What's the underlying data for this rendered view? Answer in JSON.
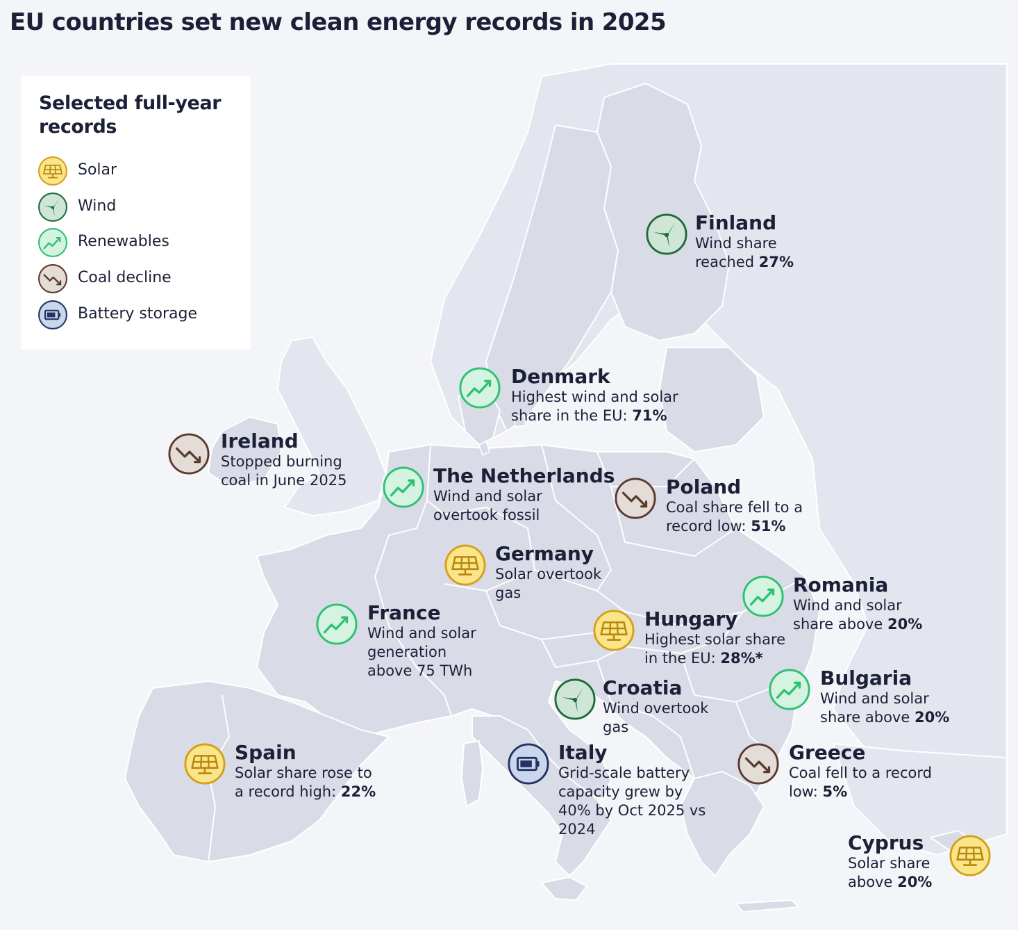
{
  "title": "EU countries set new clean energy records in 2025",
  "colors": {
    "background": "#f4f5f9",
    "land": "#d9dbe7",
    "land_light": "#e4e6ef",
    "border": "#ffffff",
    "solar_fill": "#fbe58a",
    "solar_stroke": "#d4a017",
    "wind_fill": "#cfe6d6",
    "wind_stroke": "#1f6b3a",
    "renewables_fill": "#d5f3e1",
    "renewables_stroke": "#2bc172",
    "coal_fill": "#e4dcd7",
    "coal_stroke": "#5a3a2e",
    "battery_fill": "#c9d6ee",
    "battery_stroke": "#22345f"
  },
  "legend": {
    "title": "Selected full-year records",
    "items": [
      {
        "icon": "solar-icon",
        "label": "Solar"
      },
      {
        "icon": "wind-icon",
        "label": "Wind"
      },
      {
        "icon": "renewables-icon",
        "label": "Renewables"
      },
      {
        "icon": "coal-decline-icon",
        "label": "Coal decline"
      },
      {
        "icon": "battery-icon",
        "label": "Battery storage"
      }
    ]
  },
  "callouts": {
    "finland": {
      "country": "Finland",
      "line1": "Wind share",
      "line2_text": "reached ",
      "line2_bold": "27%",
      "category": "wind"
    },
    "denmark": {
      "country": "Denmark",
      "line1": "Highest wind and solar",
      "line2_text": "share in the EU: ",
      "line2_bold": "71%",
      "category": "renewables"
    },
    "ireland": {
      "country": "Ireland",
      "line1": "Stopped burning",
      "line2_text": "coal in June 2025",
      "category": "coal"
    },
    "netherlands": {
      "country": "The Netherlands",
      "line1": "Wind and solar",
      "line2_text": "overtook fossil",
      "category": "renewables"
    },
    "poland": {
      "country": "Poland",
      "line1": "Coal share fell to a",
      "line2_text": "record low: ",
      "line2_bold": "51%",
      "category": "coal"
    },
    "germany": {
      "country": "Germany",
      "line1": "Solar overtook",
      "line2_text": "gas",
      "category": "solar"
    },
    "romania": {
      "country": "Romania",
      "line1": "Wind and solar",
      "line2_text": "share above ",
      "line2_bold": "20%",
      "category": "renewables"
    },
    "france": {
      "country": "France",
      "line1": "Wind and solar",
      "line2_text": "generation",
      "line3_text": "above 75 TWh",
      "category": "renewables"
    },
    "hungary": {
      "country": "Hungary",
      "line1": "Highest solar share",
      "line2_text": "in the EU: ",
      "line2_bold": "28%*",
      "category": "solar"
    },
    "bulgaria": {
      "country": "Bulgaria",
      "line1": "Wind and solar",
      "line2_text": "share above ",
      "line2_bold": "20%",
      "category": "renewables"
    },
    "croatia": {
      "country": "Croatia",
      "line1": "Wind overtook",
      "line2_text": "gas",
      "category": "wind"
    },
    "spain": {
      "country": "Spain",
      "line1": "Solar share rose to",
      "line2_text": "a record high: ",
      "line2_bold": "22%",
      "category": "solar"
    },
    "italy": {
      "country": "Italy",
      "line1": "Grid-scale battery",
      "line2_text": "capacity grew by",
      "line3_text": "40% by Oct 2025 vs",
      "line4_text": "2024",
      "category": "battery"
    },
    "greece": {
      "country": "Greece",
      "line1": "Coal fell to a record",
      "line2_text": "low: ",
      "line2_bold": "5%",
      "category": "coal"
    },
    "cyprus": {
      "country": "Cyprus",
      "line1": "Solar share",
      "line2_text": "above ",
      "line2_bold": "20%",
      "category": "solar"
    }
  }
}
